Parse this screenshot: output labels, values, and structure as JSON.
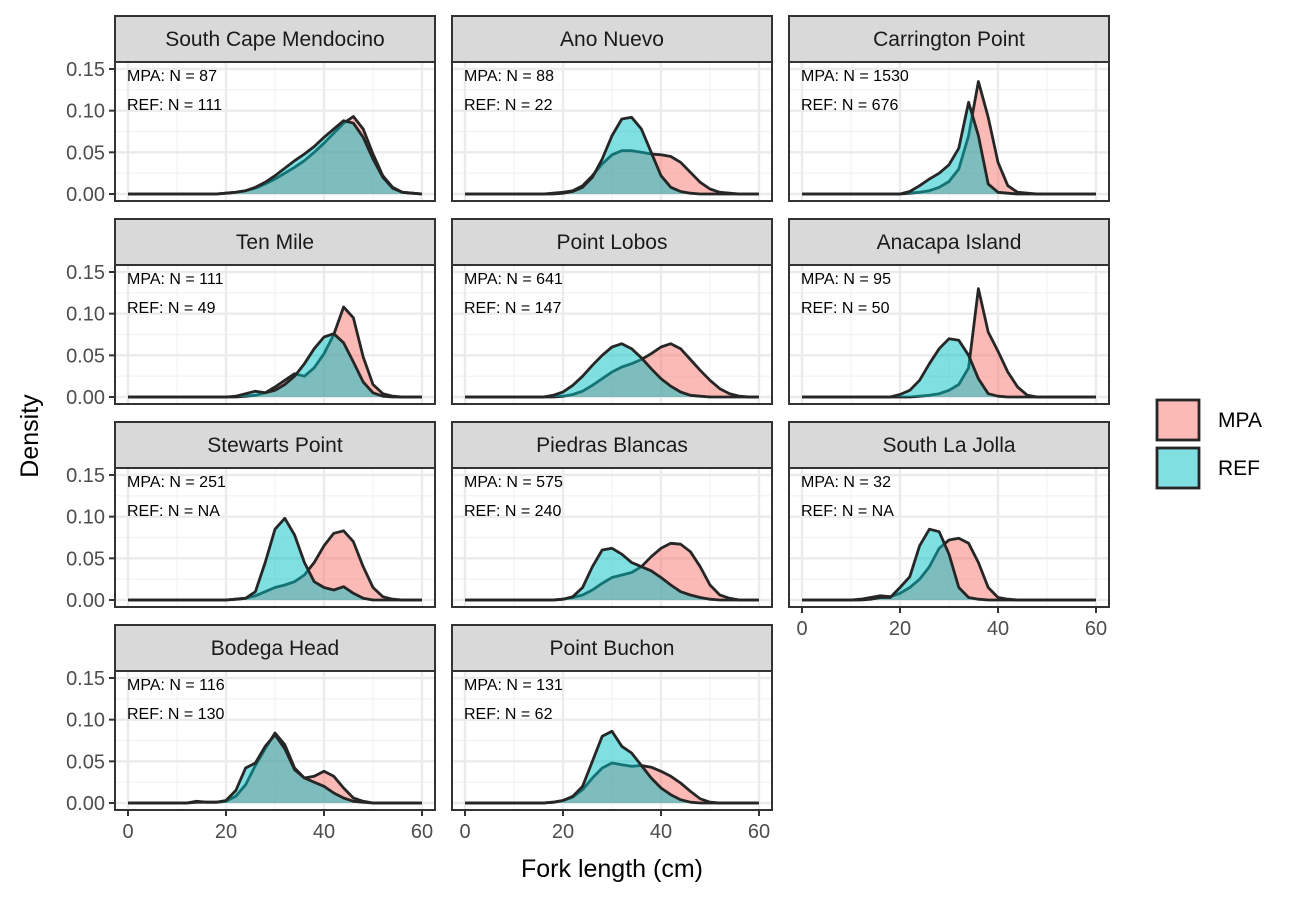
{
  "chart_data": {
    "type": "area",
    "xlabel": "Fork length (cm)",
    "ylabel": "Density",
    "xlim": [
      0,
      60
    ],
    "ylim": [
      0,
      0.15
    ],
    "x_ticks": [
      "0",
      "20",
      "40",
      "60"
    ],
    "y_ticks": [
      "0.00",
      "0.05",
      "0.10",
      "0.15"
    ],
    "grid": true,
    "legend": {
      "position": "right",
      "entries": [
        {
          "name": "MPA",
          "color": "#F8766D"
        },
        {
          "name": "REF",
          "color": "#00BFC4"
        }
      ]
    },
    "x_grid": [
      0,
      2,
      4,
      6,
      8,
      10,
      12,
      14,
      16,
      18,
      20,
      22,
      24,
      26,
      28,
      30,
      32,
      34,
      36,
      38,
      40,
      42,
      44,
      46,
      48,
      50,
      52,
      54,
      56,
      58,
      60
    ],
    "panels": [
      {
        "title": "South Cape Mendocino",
        "mpa_label": "MPA: N =  87",
        "ref_label": "REF: N =  111",
        "series": [
          {
            "name": "MPA",
            "values": [
              0,
              0,
              0,
              0,
              0,
              0,
              0,
              0,
              0,
              0,
              0.001,
              0.002,
              0.004,
              0.007,
              0.012,
              0.018,
              0.025,
              0.032,
              0.04,
              0.05,
              0.061,
              0.073,
              0.085,
              0.093,
              0.078,
              0.048,
              0.022,
              0.008,
              0.002,
              0.001,
              0
            ]
          },
          {
            "name": "REF",
            "values": [
              0,
              0,
              0,
              0,
              0,
              0,
              0,
              0,
              0,
              0,
              0.001,
              0.002,
              0.004,
              0.008,
              0.014,
              0.022,
              0.031,
              0.04,
              0.048,
              0.057,
              0.068,
              0.078,
              0.088,
              0.085,
              0.068,
              0.042,
              0.02,
              0.007,
              0.002,
              0.001,
              0
            ]
          }
        ]
      },
      {
        "title": "Ano Nuevo",
        "mpa_label": "MPA: N =  88",
        "ref_label": "REF: N =  22",
        "series": [
          {
            "name": "MPA",
            "values": [
              0,
              0,
              0,
              0,
              0,
              0,
              0,
              0,
              0,
              0.001,
              0.002,
              0.004,
              0.01,
              0.022,
              0.036,
              0.047,
              0.052,
              0.052,
              0.05,
              0.048,
              0.047,
              0.045,
              0.038,
              0.026,
              0.014,
              0.006,
              0.002,
              0.001,
              0,
              0,
              0
            ]
          },
          {
            "name": "REF",
            "values": [
              0,
              0,
              0,
              0,
              0,
              0,
              0,
              0,
              0,
              0,
              0.001,
              0.003,
              0.008,
              0.02,
              0.042,
              0.07,
              0.09,
              0.092,
              0.078,
              0.05,
              0.022,
              0.008,
              0.003,
              0.001,
              0,
              0,
              0,
              0,
              0,
              0,
              0
            ]
          }
        ]
      },
      {
        "title": "Carrington Point",
        "mpa_label": "MPA: N =  1530",
        "ref_label": "REF: N =  676",
        "series": [
          {
            "name": "MPA",
            "values": [
              0,
              0,
              0,
              0,
              0,
              0,
              0,
              0,
              0,
              0,
              0,
              0.001,
              0.002,
              0.004,
              0.008,
              0.015,
              0.03,
              0.07,
              0.135,
              0.092,
              0.038,
              0.01,
              0.002,
              0.001,
              0,
              0,
              0,
              0,
              0,
              0,
              0
            ]
          },
          {
            "name": "REF",
            "values": [
              0,
              0,
              0,
              0,
              0,
              0,
              0,
              0,
              0,
              0,
              0,
              0.003,
              0.01,
              0.018,
              0.025,
              0.035,
              0.055,
              0.11,
              0.07,
              0.012,
              0.002,
              0.001,
              0,
              0,
              0,
              0,
              0,
              0,
              0,
              0,
              0
            ]
          }
        ]
      },
      {
        "title": "Ten Mile",
        "mpa_label": "MPA: N =  111",
        "ref_label": "REF: N =  49",
        "series": [
          {
            "name": "MPA",
            "values": [
              0,
              0,
              0,
              0,
              0,
              0,
              0,
              0,
              0,
              0,
              0,
              0,
              0.001,
              0.002,
              0.005,
              0.012,
              0.02,
              0.028,
              0.025,
              0.035,
              0.052,
              0.075,
              0.108,
              0.095,
              0.048,
              0.015,
              0.004,
              0.001,
              0,
              0,
              0
            ]
          },
          {
            "name": "REF",
            "values": [
              0,
              0,
              0,
              0,
              0,
              0,
              0,
              0,
              0,
              0,
              0,
              0.001,
              0.004,
              0.007,
              0.005,
              0.008,
              0.015,
              0.025,
              0.04,
              0.058,
              0.072,
              0.076,
              0.065,
              0.042,
              0.018,
              0.005,
              0.001,
              0,
              0,
              0,
              0
            ]
          }
        ]
      },
      {
        "title": "Point Lobos",
        "mpa_label": "MPA: N =  641",
        "ref_label": "REF: N =  147",
        "series": [
          {
            "name": "MPA",
            "values": [
              0,
              0,
              0,
              0,
              0,
              0,
              0,
              0,
              0,
              0,
              0.001,
              0.003,
              0.007,
              0.014,
              0.022,
              0.03,
              0.036,
              0.04,
              0.045,
              0.052,
              0.06,
              0.064,
              0.058,
              0.045,
              0.032,
              0.02,
              0.01,
              0.004,
              0.001,
              0,
              0
            ]
          },
          {
            "name": "REF",
            "values": [
              0,
              0,
              0,
              0,
              0,
              0,
              0,
              0,
              0,
              0.002,
              0.006,
              0.014,
              0.025,
              0.038,
              0.05,
              0.06,
              0.064,
              0.058,
              0.047,
              0.034,
              0.022,
              0.013,
              0.006,
              0.002,
              0.001,
              0,
              0,
              0,
              0,
              0,
              0
            ]
          }
        ]
      },
      {
        "title": "Anacapa Island",
        "mpa_label": "MPA: N =  95",
        "ref_label": "REF: N =  50",
        "series": [
          {
            "name": "MPA",
            "values": [
              0,
              0,
              0,
              0,
              0,
              0,
              0,
              0,
              0,
              0,
              0,
              0,
              0.001,
              0.002,
              0.004,
              0.008,
              0.015,
              0.035,
              0.13,
              0.078,
              0.055,
              0.03,
              0.012,
              0.002,
              0,
              0,
              0,
              0,
              0,
              0,
              0
            ]
          },
          {
            "name": "REF",
            "values": [
              0,
              0,
              0,
              0,
              0,
              0,
              0,
              0,
              0,
              0,
              0.003,
              0.008,
              0.02,
              0.04,
              0.058,
              0.07,
              0.068,
              0.05,
              0.022,
              0.004,
              0.001,
              0,
              0,
              0,
              0,
              0,
              0,
              0,
              0,
              0,
              0
            ]
          }
        ]
      },
      {
        "title": "Stewarts Point",
        "mpa_label": "MPA: N =  251",
        "ref_label": "REF: N =  NA",
        "series": [
          {
            "name": "MPA",
            "values": [
              0,
              0,
              0,
              0,
              0,
              0,
              0,
              0,
              0,
              0,
              0,
              0.001,
              0.002,
              0.005,
              0.01,
              0.015,
              0.018,
              0.022,
              0.03,
              0.045,
              0.065,
              0.08,
              0.083,
              0.07,
              0.04,
              0.015,
              0.004,
              0.001,
              0,
              0,
              0
            ]
          },
          {
            "name": "REF",
            "values": [
              0,
              0,
              0,
              0,
              0,
              0,
              0,
              0,
              0,
              0,
              0,
              0.001,
              0.002,
              0.01,
              0.045,
              0.085,
              0.098,
              0.078,
              0.045,
              0.022,
              0.015,
              0.012,
              0.016,
              0.008,
              0.002,
              0,
              0,
              0,
              0,
              0,
              0
            ]
          }
        ]
      },
      {
        "title": "Piedras Blancas",
        "mpa_label": "MPA: N =  575",
        "ref_label": "REF: N =  240",
        "series": [
          {
            "name": "MPA",
            "values": [
              0,
              0,
              0,
              0,
              0,
              0,
              0,
              0,
              0,
              0,
              0.001,
              0.003,
              0.006,
              0.012,
              0.02,
              0.027,
              0.03,
              0.033,
              0.04,
              0.052,
              0.062,
              0.068,
              0.067,
              0.058,
              0.04,
              0.018,
              0.006,
              0.002,
              0,
              0,
              0
            ]
          },
          {
            "name": "REF",
            "values": [
              0,
              0,
              0,
              0,
              0,
              0,
              0,
              0,
              0,
              0,
              0.001,
              0.004,
              0.015,
              0.04,
              0.06,
              0.062,
              0.055,
              0.045,
              0.04,
              0.035,
              0.027,
              0.018,
              0.01,
              0.006,
              0.003,
              0.001,
              0,
              0,
              0,
              0,
              0
            ]
          }
        ]
      },
      {
        "title": "South La Jolla",
        "mpa_label": "MPA: N =  32",
        "ref_label": "REF: N =  NA",
        "series": [
          {
            "name": "MPA",
            "values": [
              0,
              0,
              0,
              0,
              0,
              0,
              0.001,
              0.003,
              0.005,
              0.004,
              0.008,
              0.015,
              0.025,
              0.04,
              0.062,
              0.072,
              0.074,
              0.068,
              0.045,
              0.015,
              0.003,
              0.001,
              0,
              0,
              0,
              0,
              0,
              0,
              0,
              0,
              0
            ]
          },
          {
            "name": "REF",
            "values": [
              0,
              0,
              0,
              0,
              0,
              0,
              0,
              0.001,
              0.003,
              0.003,
              0.015,
              0.028,
              0.065,
              0.085,
              0.082,
              0.055,
              0.015,
              0.003,
              0.001,
              0,
              0,
              0,
              0,
              0,
              0,
              0,
              0,
              0,
              0,
              0,
              0
            ]
          }
        ]
      },
      {
        "title": "Bodega Head",
        "mpa_label": "MPA: N =  116",
        "ref_label": "REF: N =  130",
        "series": [
          {
            "name": "MPA",
            "values": [
              0,
              0,
              0,
              0,
              0,
              0,
              0,
              0.002,
              0.001,
              0.001,
              0.002,
              0.008,
              0.022,
              0.045,
              0.065,
              0.084,
              0.07,
              0.042,
              0.03,
              0.032,
              0.038,
              0.032,
              0.018,
              0.006,
              0.002,
              0,
              0,
              0,
              0,
              0,
              0
            ]
          },
          {
            "name": "REF",
            "values": [
              0,
              0,
              0,
              0,
              0,
              0,
              0,
              0.001,
              0.001,
              0.001,
              0.003,
              0.015,
              0.042,
              0.048,
              0.068,
              0.082,
              0.065,
              0.04,
              0.03,
              0.025,
              0.02,
              0.012,
              0.006,
              0.002,
              0.001,
              0,
              0,
              0,
              0,
              0,
              0
            ]
          }
        ]
      },
      {
        "title": "Point Buchon",
        "mpa_label": "MPA: N =  131",
        "ref_label": "REF: N =  62",
        "series": [
          {
            "name": "MPA",
            "values": [
              0,
              0,
              0,
              0,
              0,
              0,
              0,
              0,
              0,
              0.001,
              0.003,
              0.007,
              0.016,
              0.03,
              0.042,
              0.048,
              0.046,
              0.044,
              0.045,
              0.043,
              0.038,
              0.032,
              0.024,
              0.014,
              0.005,
              0.001,
              0,
              0,
              0,
              0,
              0
            ]
          },
          {
            "name": "REF",
            "values": [
              0,
              0,
              0,
              0,
              0,
              0,
              0,
              0,
              0,
              0.001,
              0.003,
              0.008,
              0.02,
              0.05,
              0.08,
              0.086,
              0.068,
              0.06,
              0.045,
              0.03,
              0.018,
              0.01,
              0.004,
              0.001,
              0,
              0,
              0,
              0,
              0,
              0,
              0
            ]
          }
        ]
      }
    ]
  }
}
